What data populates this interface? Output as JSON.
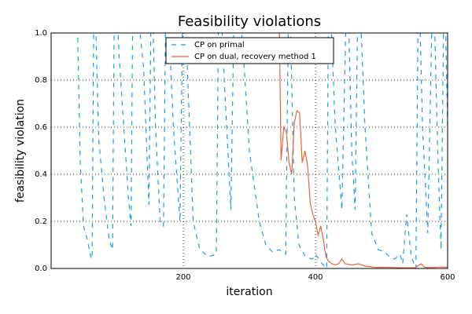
{
  "chart_data": {
    "type": "line",
    "title": "Feasibility violations",
    "x_label": "iteration",
    "y_label": "feasibility violation",
    "xlim": [
      0,
      600
    ],
    "xticks": [
      200,
      400,
      600
    ],
    "ylim": [
      0,
      1
    ],
    "yticks": [
      {
        "value": 0,
        "label": "0.0"
      },
      0.2,
      0.4,
      0.6,
      0.8,
      {
        "value": 1,
        "label": "1.0"
      }
    ],
    "grid": true,
    "legend": "upper center",
    "series": [
      {
        "name": "CP on primal",
        "color": "#1f9be6",
        "linestyle": "dashed",
        "x": [
          38,
          44,
          49,
          55,
          60,
          62,
          65,
          72,
          80,
          88,
          93,
          96,
          103,
          110,
          117,
          121,
          124,
          140,
          148,
          152,
          158,
          165,
          170,
          174,
          185,
          195,
          200,
          215,
          225,
          238,
          250,
          254,
          262,
          272,
          278,
          290,
          300,
          315,
          325,
          335,
          345,
          355,
          360,
          368,
          375,
          385,
          395,
          400,
          410,
          417,
          420,
          430,
          440,
          448,
          455,
          460,
          465,
          475,
          485,
          495,
          505,
          512,
          520,
          528,
          532,
          538,
          545,
          552,
          556,
          562,
          570,
          578,
          585,
          590,
          595,
          600
        ],
        "values": [
          1.3,
          0.45,
          0.18,
          0.12,
          0.05,
          0.04,
          1.3,
          0.55,
          0.3,
          0.12,
          0.08,
          1.3,
          0.9,
          0.6,
          0.3,
          0.18,
          1.3,
          0.85,
          0.27,
          1.3,
          0.6,
          0.2,
          0.18,
          1.3,
          0.6,
          0.2,
          1.3,
          0.2,
          0.08,
          0.05,
          0.06,
          1.3,
          0.8,
          0.25,
          1.3,
          0.95,
          0.5,
          0.2,
          0.1,
          0.07,
          0.08,
          0.06,
          1.3,
          0.3,
          0.1,
          0.05,
          0.04,
          0.06,
          0.02,
          0.0,
          1.3,
          0.6,
          0.25,
          1.3,
          0.5,
          0.25,
          1.3,
          0.6,
          0.15,
          0.08,
          0.07,
          0.05,
          0.04,
          0.06,
          0.02,
          0.23,
          0.05,
          0.0,
          1.3,
          0.6,
          0.15,
          1.3,
          0.5,
          0.08,
          1.3,
          0.6
        ]
      },
      {
        "name": "CP on dual, recovery method 1",
        "color": "#e8643c",
        "linestyle": "solid",
        "x": [
          344,
          348,
          352,
          356,
          360,
          364,
          368,
          372,
          376,
          380,
          384,
          388,
          392,
          396,
          400,
          404,
          408,
          412,
          416,
          420,
          425,
          430,
          435,
          440,
          445,
          455,
          465,
          475,
          490,
          510,
          530,
          550,
          560,
          565,
          575,
          590,
          600
        ],
        "values": [
          1.3,
          0.46,
          0.6,
          0.58,
          0.45,
          0.4,
          0.62,
          0.67,
          0.66,
          0.45,
          0.5,
          0.44,
          0.28,
          0.23,
          0.2,
          0.14,
          0.18,
          0.12,
          0.05,
          0.03,
          0.02,
          0.015,
          0.02,
          0.04,
          0.02,
          0.015,
          0.02,
          0.01,
          0.005,
          0.005,
          0.003,
          0.003,
          0.02,
          0.005,
          0.004,
          0.006,
          0.005
        ]
      }
    ]
  }
}
